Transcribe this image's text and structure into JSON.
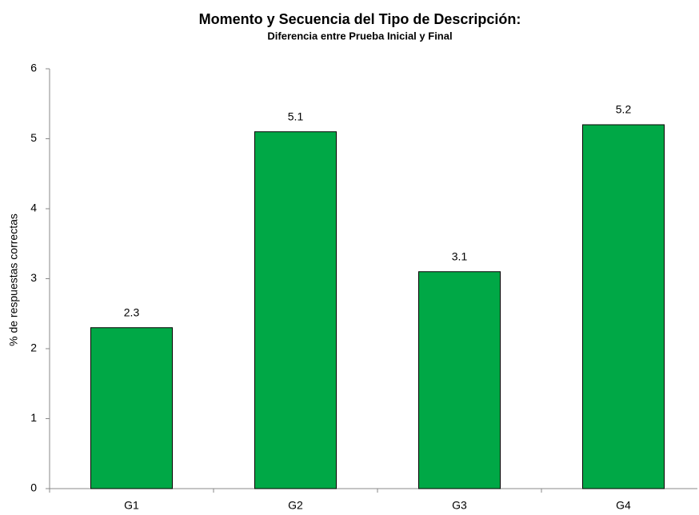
{
  "chart_data": {
    "type": "bar",
    "title": "Momento y Secuencia del Tipo de Descripción:",
    "subtitle": "Diferencia entre Prueba Inicial y Final",
    "y_label": "% de respuestas correctas",
    "categories": [
      "G1",
      "G2",
      "G3",
      "G4"
    ],
    "values": [
      2.3,
      5.1,
      3.1,
      5.2
    ],
    "color": "#00a846",
    "ylim": [
      0,
      6
    ],
    "yticks": [
      0,
      1,
      2,
      3,
      4,
      5,
      6
    ],
    "grid": false
  }
}
